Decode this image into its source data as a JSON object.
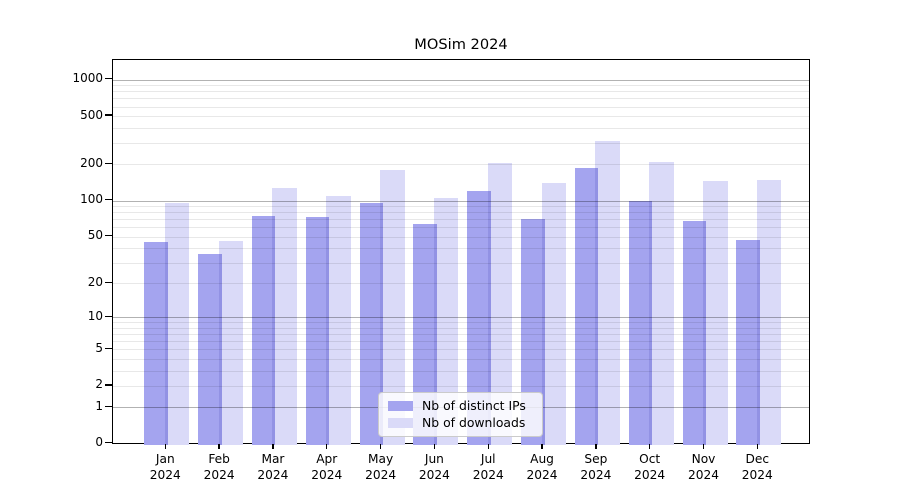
{
  "title": "MOSim 2024",
  "chart_data": {
    "type": "bar",
    "title": "MOSim 2024",
    "y_scale": "log1p",
    "ylim": [
      0,
      1460
    ],
    "grid": "on",
    "legend_position": "lower center",
    "categories": [
      "Jan 2024",
      "Feb 2024",
      "Mar 2024",
      "Apr 2024",
      "May 2024",
      "Jun 2024",
      "Jul 2024",
      "Aug 2024",
      "Sep 2024",
      "Oct 2024",
      "Nov 2024",
      "Dec 2024"
    ],
    "series": [
      {
        "name": "Nb of distinct IPs",
        "color": "#a4a4ef",
        "values": [
          45,
          36,
          75,
          73,
          96,
          64,
          120,
          70,
          188,
          100,
          68,
          47
        ]
      },
      {
        "name": "Nb of downloads",
        "color": "#dadaf8",
        "values": [
          95,
          46,
          128,
          110,
          178,
          106,
          205,
          139,
          310,
          210,
          145,
          149
        ]
      }
    ],
    "overlap_color": "#9292e4",
    "y_ticks": [
      1000,
      500,
      200,
      100,
      50,
      20,
      10,
      5,
      2,
      1,
      0
    ],
    "y_tick_labels": [
      "1000",
      "500",
      "200",
      "100",
      "50",
      "20",
      "10",
      "5",
      "2",
      "1",
      "0"
    ],
    "major_gridlines": [
      1,
      10,
      100,
      1000
    ],
    "minor_gridlines": [
      2,
      3,
      4,
      5,
      6,
      7,
      8,
      9,
      20,
      30,
      40,
      50,
      60,
      70,
      80,
      90,
      200,
      300,
      400,
      500,
      600,
      700,
      800,
      900
    ]
  }
}
